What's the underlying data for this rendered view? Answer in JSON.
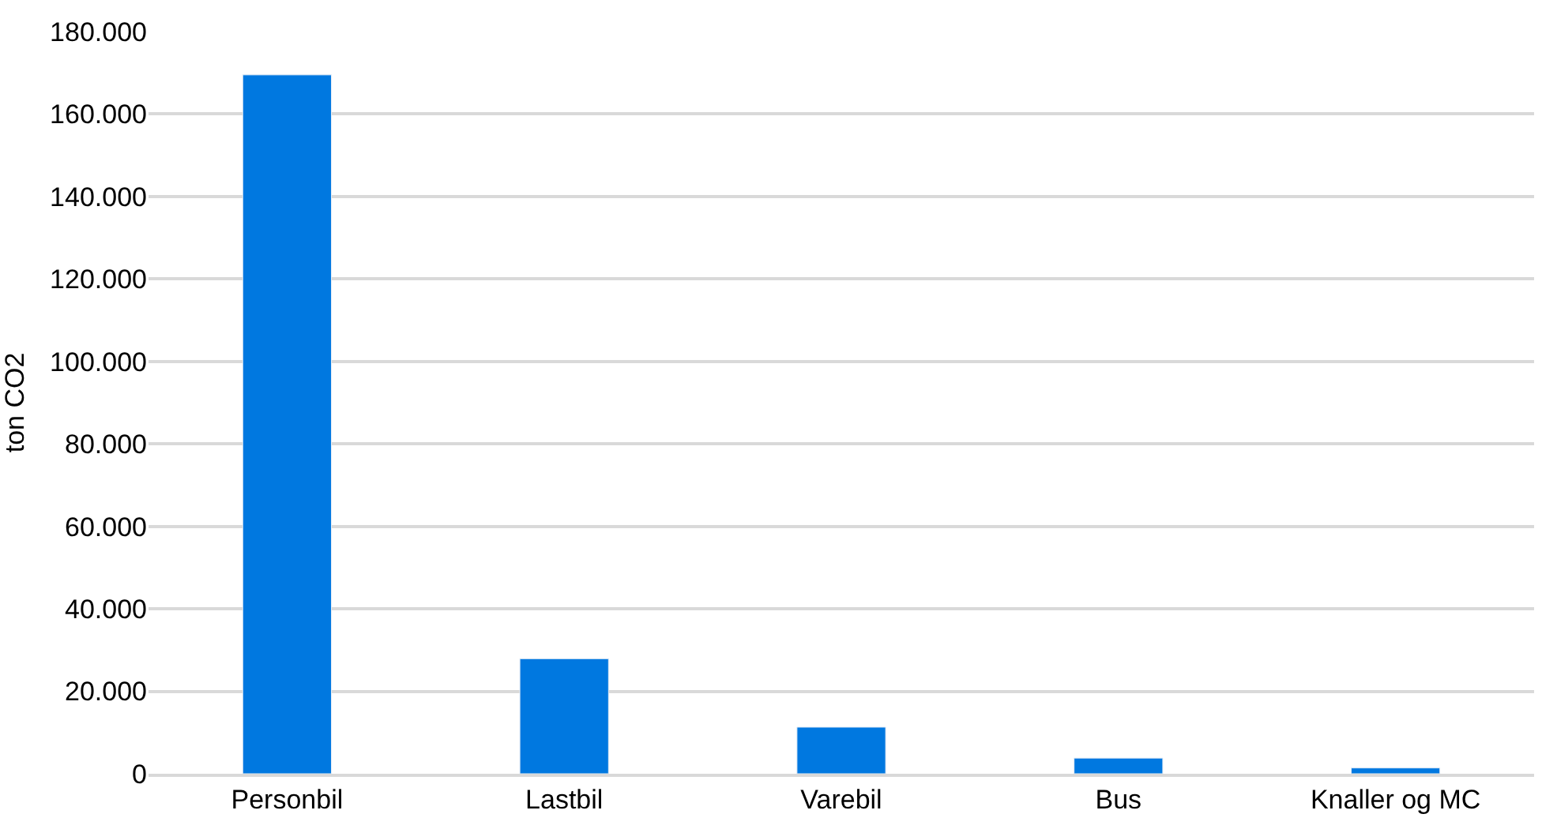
{
  "chart_data": {
    "type": "bar",
    "ylabel": "ton CO2",
    "categories": [
      "Personbil",
      "Lastbil",
      "Varebil",
      "Bus",
      "Knaller og MC"
    ],
    "values": [
      169500,
      27900,
      11300,
      3800,
      1400
    ],
    "color": "#0078e0",
    "ylim": [
      0,
      180000
    ],
    "yticks": [
      {
        "value": 0,
        "label": "0"
      },
      {
        "value": 20000,
        "label": "20.000"
      },
      {
        "value": 40000,
        "label": "40.000"
      },
      {
        "value": 60000,
        "label": "60.000"
      },
      {
        "value": 80000,
        "label": "80.000"
      },
      {
        "value": 100000,
        "label": "100.000"
      },
      {
        "value": 120000,
        "label": "120.000"
      },
      {
        "value": 140000,
        "label": "140.000"
      },
      {
        "value": 160000,
        "label": "160.000"
      },
      {
        "value": 180000,
        "label": "180.000"
      }
    ],
    "grid": "y",
    "legend": false
  }
}
